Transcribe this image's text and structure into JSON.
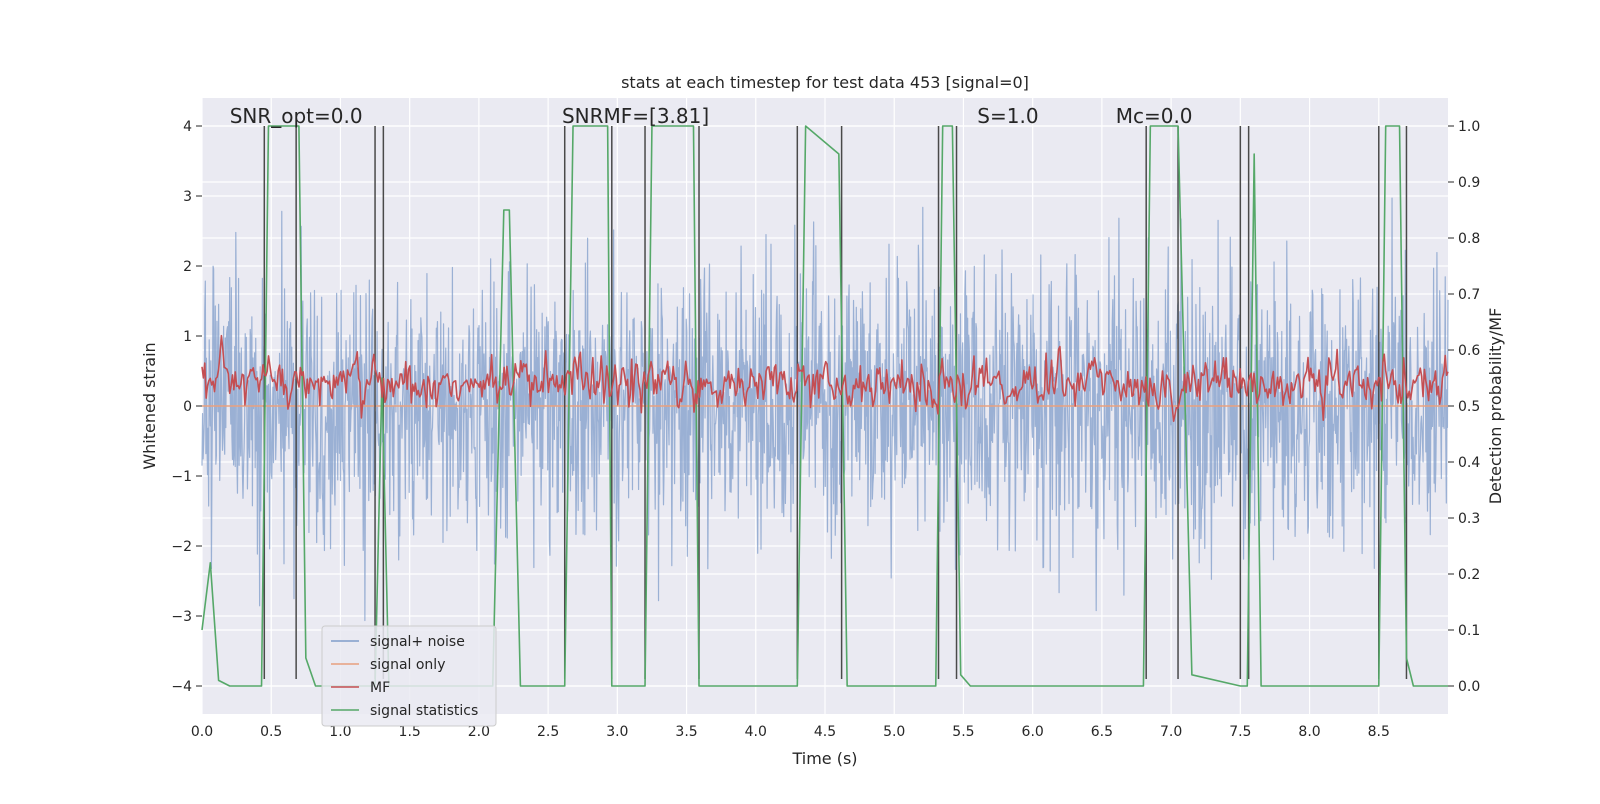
{
  "chart_data": {
    "type": "line",
    "title": "stats at each timestep for test data 453 [signal=0]",
    "xlabel": "Time (s)",
    "ylabel_left": "Whitened strain",
    "ylabel_right": "Detection probability/MF",
    "xlim": [
      0.0,
      9.0
    ],
    "ylim_left": [
      -4.4,
      4.4
    ],
    "ylim_right": [
      -0.05,
      1.05
    ],
    "grid": true,
    "legend_position": "lower-left",
    "x_ticks": [
      "0.0",
      "0.5",
      "1.0",
      "1.5",
      "2.0",
      "2.5",
      "3.0",
      "3.5",
      "4.0",
      "4.5",
      "5.0",
      "5.5",
      "6.0",
      "6.5",
      "7.0",
      "7.5",
      "8.0",
      "8.5"
    ],
    "x_tick_values": [
      0,
      0.5,
      1,
      1.5,
      2,
      2.5,
      3,
      3.5,
      4,
      4.5,
      5,
      5.5,
      6,
      6.5,
      7,
      7.5,
      8,
      8.5
    ],
    "y_left_ticks": [
      "−4",
      "−3",
      "−2",
      "−1",
      "0",
      "1",
      "2",
      "3",
      "4"
    ],
    "y_left_tick_values": [
      -4,
      -3,
      -2,
      -1,
      0,
      1,
      2,
      3,
      4
    ],
    "y_right_ticks": [
      "0.0",
      "0.1",
      "0.2",
      "0.3",
      "0.4",
      "0.5",
      "0.6",
      "0.7",
      "0.8",
      "0.9",
      "1.0"
    ],
    "y_right_tick_values": [
      0,
      0.1,
      0.2,
      0.3,
      0.4,
      0.5,
      0.6,
      0.7,
      0.8,
      0.9,
      1.0
    ],
    "annotations": [
      {
        "text": "SNR_opt=0.0",
        "x": 0.2
      },
      {
        "text": "SNRMF=[3.81]",
        "x": 2.6
      },
      {
        "text": "S=1.0",
        "x": 5.6
      },
      {
        "text": "Mc=0.0",
        "x": 6.6
      }
    ],
    "series": [
      {
        "name": "signal+ noise",
        "color": "#7f9cc9",
        "axis": "left",
        "kind": "noise",
        "noise_sigma": 0.95,
        "noise_seed": 453,
        "x_range": [
          0.0,
          9.0
        ],
        "num_samples": 2250
      },
      {
        "name": "signal only",
        "color": "#e8a07e",
        "axis": "left",
        "kind": "flat",
        "value": 0.0
      },
      {
        "name": "MF",
        "color": "#c44e52",
        "axis": "right",
        "kind": "noise",
        "noise_mean": 0.54,
        "noise_sigma": 0.035,
        "noise_seed": 97,
        "x_range": [
          0.0,
          9.0
        ],
        "num_samples": 900
      },
      {
        "name": "signal statistics",
        "color": "#55a868",
        "axis": "right",
        "kind": "line",
        "x": [
          0.0,
          0.06,
          0.12,
          0.2,
          0.43,
          0.48,
          0.7,
          0.75,
          0.82,
          1.2,
          1.25,
          1.3,
          1.35,
          2.1,
          2.18,
          2.22,
          2.3,
          2.62,
          2.68,
          2.93,
          2.96,
          3.0,
          3.2,
          3.25,
          3.55,
          3.59,
          3.7,
          4.3,
          4.36,
          4.6,
          4.66,
          5.3,
          5.35,
          5.42,
          5.48,
          5.55,
          6.8,
          6.85,
          7.05,
          7.15,
          7.5,
          7.55,
          7.6,
          7.65,
          8.5,
          8.55,
          8.65,
          8.7,
          8.75,
          9.0
        ],
        "y": [
          0.1,
          0.22,
          0.01,
          0.0,
          0.0,
          1.0,
          1.0,
          0.05,
          0.0,
          0.0,
          0.0,
          0.55,
          0.0,
          0.0,
          0.85,
          0.85,
          0.0,
          0.0,
          1.0,
          1.0,
          0.0,
          0.0,
          0.0,
          1.0,
          1.0,
          0.0,
          0.0,
          0.0,
          1.0,
          0.95,
          0.0,
          0.0,
          1.0,
          1.0,
          0.02,
          0.0,
          0.0,
          1.0,
          1.0,
          0.02,
          0.0,
          0.0,
          0.95,
          0.0,
          0.0,
          1.0,
          1.0,
          0.05,
          0.0,
          0.0
        ]
      }
    ],
    "event_markers": {
      "color": "#4a4a4a",
      "y_span_left": [
        -3.9,
        4.0
      ],
      "x": [
        0.45,
        0.68,
        1.25,
        1.31,
        2.62,
        2.96,
        3.2,
        3.59,
        4.3,
        4.62,
        5.32,
        5.45,
        6.82,
        7.05,
        7.5,
        7.56,
        8.5,
        8.7
      ]
    }
  }
}
